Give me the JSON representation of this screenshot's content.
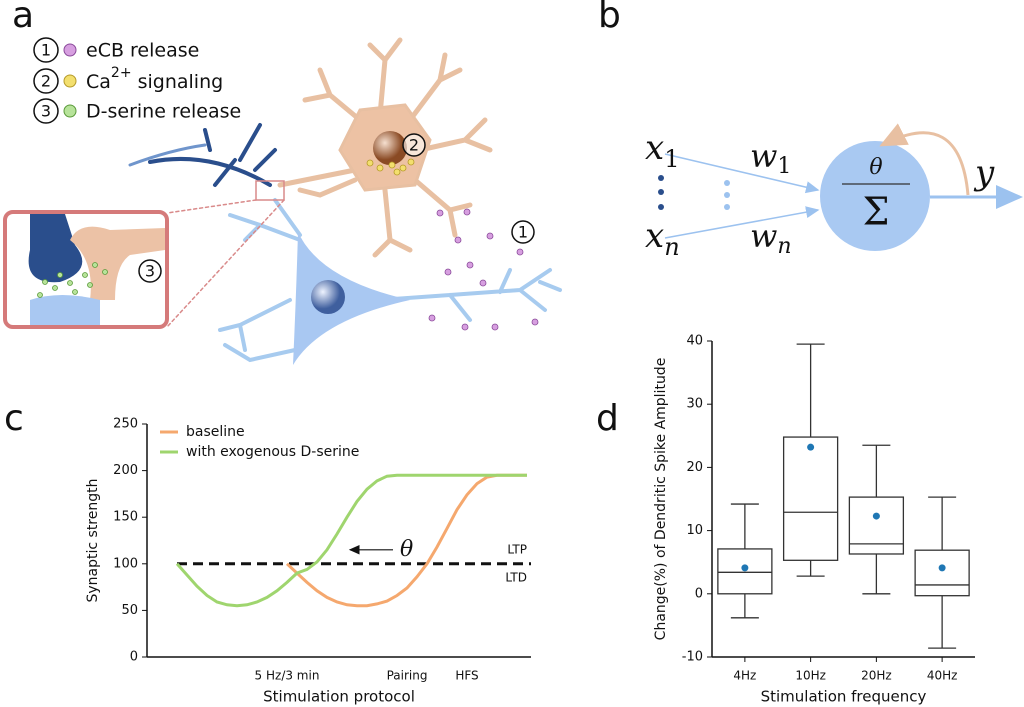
{
  "panel_labels": [
    "a",
    "b",
    "c",
    "d"
  ],
  "diagram_a": {
    "legend": [
      {
        "number": "1",
        "label": "eCB release"
      },
      {
        "number": "2",
        "label": "Ca",
        "superscript": "2+",
        "suffix": " signaling"
      },
      {
        "number": "3",
        "label": "D-serine release"
      }
    ]
  },
  "diagram_b": {
    "inputs": [
      {
        "symbol": "x",
        "index": "1"
      },
      {
        "symbol": "x",
        "index": "n"
      }
    ],
    "weights": [
      {
        "symbol": "w",
        "index": "1"
      },
      {
        "symbol": "w",
        "index": "n"
      }
    ],
    "threshold": "θ",
    "sum": "Σ",
    "output": "y"
  },
  "chart_data": [
    {
      "type": "line",
      "ylabel": "Synaptic strength",
      "xlabel": "Stimulation protocol",
      "categories": [
        null,
        null,
        null,
        null,
        null,
        null,
        null,
        null,
        null,
        null,
        null,
        null,
        null,
        null,
        "5 Hz/3 min",
        null,
        null,
        null,
        null,
        null,
        null,
        null,
        null,
        null,
        null,
        null,
        "Pairing",
        null,
        null,
        null,
        null,
        null,
        "HFS",
        null,
        null,
        null,
        null,
        null,
        null
      ],
      "series": [
        {
          "name": "baseline",
          "color": "#f5a86e",
          "values": [
            null,
            null,
            null,
            null,
            null,
            null,
            null,
            null,
            null,
            null,
            null,
            null,
            null,
            null,
            100,
            90,
            80,
            71,
            64,
            59,
            56,
            55,
            55,
            57,
            60,
            66,
            74,
            86,
            100,
            118,
            138,
            158,
            174,
            186,
            193,
            195,
            195,
            195,
            195
          ]
        },
        {
          "name": "with exogenous D-serine",
          "color": "#9fd56e",
          "values": [
            null,
            null,
            null,
            100,
            88,
            76,
            66,
            59,
            56,
            55,
            56,
            59,
            64,
            71,
            80,
            90,
            94,
            102,
            115,
            132,
            150,
            167,
            180,
            189,
            194,
            195,
            195,
            195,
            195,
            195,
            195,
            195,
            195,
            195,
            195,
            195,
            195,
            195,
            195
          ]
        }
      ],
      "ylim": [
        0,
        250
      ],
      "yticks": [
        0,
        50,
        100,
        150,
        200,
        250
      ],
      "threshold": 100,
      "threshold_labels": {
        "above": "LTP",
        "below": "LTD"
      },
      "annotation": "θ",
      "legend": "upper left"
    },
    {
      "type": "box",
      "ylabel": "Change(%) of Dendritic Spike Amplitude",
      "xlabel": "Stimulation frequency",
      "categories": [
        "4Hz",
        "10Hz",
        "20Hz",
        "40Hz"
      ],
      "min": [
        -3.8,
        2.8,
        0,
        -8.6
      ],
      "q1": [
        0,
        5.3,
        6.3,
        -0.3
      ],
      "median": [
        3.4,
        12.9,
        7.9,
        1.4
      ],
      "q3": [
        7.1,
        24.8,
        15.3,
        6.9
      ],
      "max": [
        14.2,
        39.5,
        23.5,
        15.3
      ],
      "mean": [
        4.1,
        23.2,
        12.3,
        4.1
      ],
      "mean_color": "#1f77b4",
      "ylim": [
        -10,
        40
      ],
      "yticks": [
        -10,
        0,
        10,
        20,
        30,
        40
      ]
    }
  ]
}
